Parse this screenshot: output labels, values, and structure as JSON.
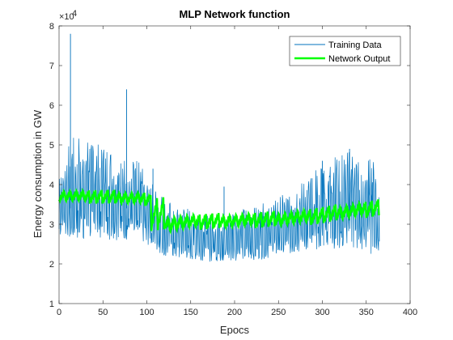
{
  "chart_data": {
    "type": "line",
    "title": "MLP Network function",
    "xlabel": "Epocs",
    "ylabel": "Energy consumption in GW",
    "xlim": [
      0,
      400
    ],
    "ylim": [
      10000,
      80000
    ],
    "x_ticks": [
      "0",
      "50",
      "100",
      "150",
      "200",
      "250",
      "300",
      "350",
      "400"
    ],
    "y_ticks": [
      "1",
      "2",
      "3",
      "4",
      "5",
      "6",
      "7",
      "8"
    ],
    "y_exponent_base": "×10",
    "y_exponent_power": "4",
    "grid": false,
    "legend_position": "top-right",
    "legend": [
      "Training Data",
      "Network Output"
    ],
    "colors": {
      "Training Data": "#0072BD",
      "Network Output": "#00FF00"
    },
    "series": [
      {
        "name": "Training Data",
        "x": [
          0,
          10,
          20,
          30,
          40,
          50,
          60,
          70,
          80,
          90,
          100,
          110,
          120,
          130,
          140,
          150,
          160,
          170,
          180,
          190,
          200,
          210,
          220,
          230,
          240,
          250,
          260,
          270,
          280,
          290,
          300,
          310,
          320,
          330,
          340,
          350,
          360,
          365
        ],
        "max": [
          45000,
          50000,
          53000,
          53000,
          51000,
          50000,
          49000,
          48000,
          46000,
          46000,
          44000,
          39000,
          37000,
          35000,
          35000,
          34000,
          33000,
          33000,
          33000,
          33000,
          34000,
          34000,
          34000,
          35000,
          36000,
          37000,
          38000,
          40000,
          41000,
          43000,
          46000,
          47000,
          48000,
          49000,
          48000,
          47000,
          46000,
          40000
        ],
        "min": [
          26000,
          26000,
          26000,
          26000,
          26000,
          26000,
          26000,
          26000,
          26000,
          26000,
          25000,
          23000,
          22000,
          21500,
          21000,
          21000,
          21000,
          20500,
          20500,
          20500,
          20500,
          21000,
          21000,
          21000,
          21500,
          22000,
          22000,
          22500,
          23000,
          23000,
          24000,
          24000,
          23500,
          23000,
          23000,
          23000,
          22000,
          22000
        ],
        "spikes": [
          {
            "x": 13,
            "y": 78000
          },
          {
            "x": 77,
            "y": 64000
          },
          {
            "x": 107,
            "y": 44000
          },
          {
            "x": 188,
            "y": 39500
          },
          {
            "x": 300,
            "y": 46000
          },
          {
            "x": 331,
            "y": 49000
          }
        ]
      },
      {
        "name": "Network Output",
        "x": [
          0,
          50,
          104,
          105,
          120,
          121,
          150,
          200,
          250,
          300,
          330,
          365
        ],
        "upper": [
          39000,
          38800,
          38200,
          37000,
          37000,
          32500,
          32800,
          33000,
          33500,
          34500,
          35500,
          36500
        ],
        "lower": [
          35500,
          35000,
          34500,
          28000,
          28000,
          27500,
          28500,
          28800,
          29200,
          30000,
          31000,
          32000
        ]
      }
    ]
  }
}
